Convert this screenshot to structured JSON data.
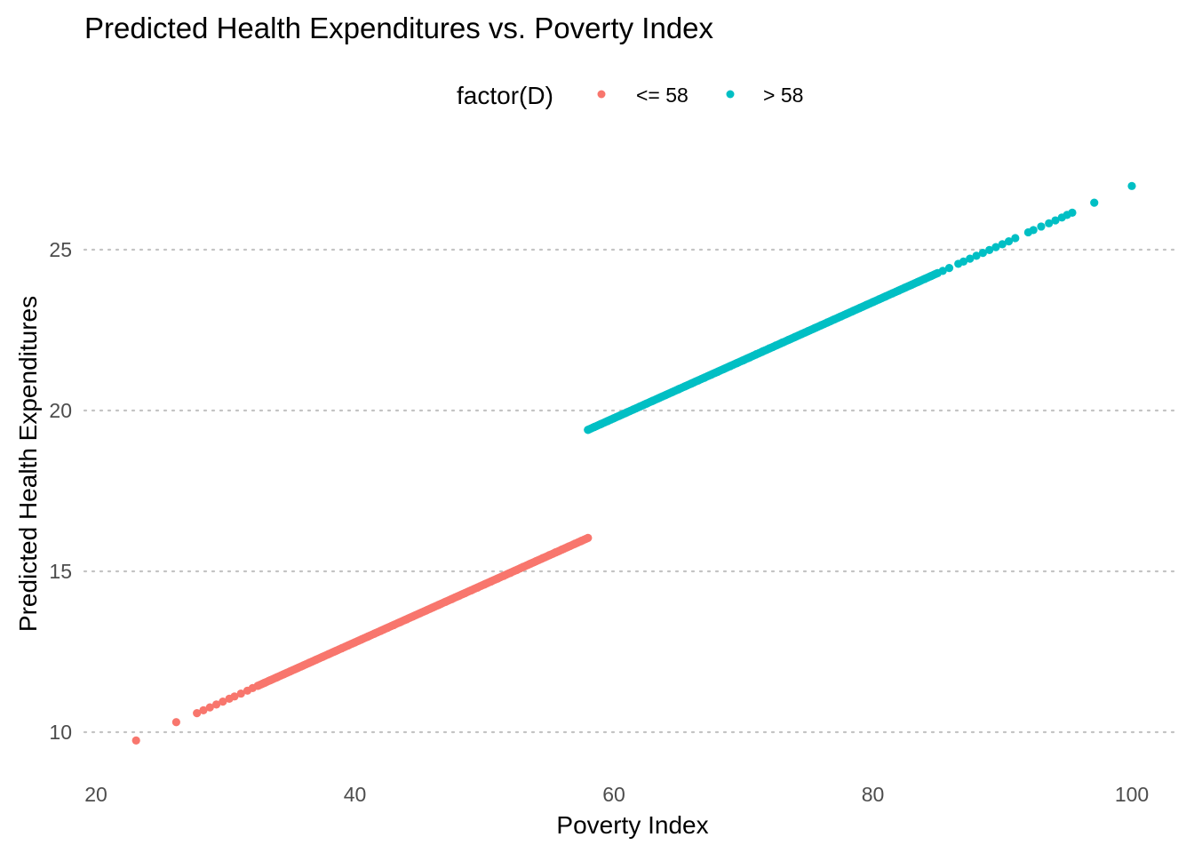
{
  "chart_data": {
    "type": "scatter",
    "title": "Predicted Health Expenditures vs. Poverty Index",
    "xlabel": "Poverty Index",
    "ylabel": "Predicted Health Expenditures",
    "xlim": [
      20,
      100
    ],
    "ylim": [
      9.5,
      27.2
    ],
    "xticks": [
      20,
      40,
      60,
      80,
      100
    ],
    "yticks": [
      10,
      15,
      20,
      25
    ],
    "grid": "horizontal-major-dotted",
    "legend": {
      "title": "factor(D)",
      "position": "top",
      "entries": [
        {
          "label": "<= 58",
          "color": "#F8766D"
        },
        {
          "label": "> 58",
          "color": "#00BFC4"
        }
      ]
    },
    "series": [
      {
        "name": "<= 58",
        "color": "#F8766D",
        "fit": {
          "slope": 0.1803,
          "intercept": 5.58,
          "x_range": [
            23.1,
            58.0
          ]
        },
        "x": [
          23.1,
          26.2,
          27.8,
          28.3,
          28.8,
          29.3,
          29.8,
          30.3,
          30.7,
          31.2,
          31.7,
          32.1,
          32.5,
          33.0,
          33.5,
          34.0,
          34.5,
          35.0,
          35.5,
          36.0,
          36.5,
          37.0,
          37.5,
          38.0,
          38.5,
          39.0,
          39.5,
          40.0,
          40.5,
          41.0,
          41.5,
          42.0,
          42.5,
          43.0,
          43.5,
          44.0,
          44.5,
          45.0,
          45.5,
          46.0,
          46.5,
          47.0,
          47.5,
          48.0,
          48.5,
          49.0,
          49.5,
          50.0,
          50.5,
          51.0,
          51.5,
          52.0,
          52.5,
          53.0,
          53.5,
          54.0,
          54.5,
          55.0,
          55.5,
          56.0,
          56.5,
          57.0,
          57.5,
          58.0
        ],
        "y": [
          9.74,
          10.31,
          10.59,
          10.68,
          10.77,
          10.86,
          10.95,
          11.04,
          11.11,
          11.2,
          11.29,
          11.37,
          11.44,
          11.53,
          11.62,
          11.71,
          11.8,
          11.89,
          11.98,
          12.07,
          12.16,
          12.25,
          12.34,
          12.43,
          12.52,
          12.61,
          12.7,
          12.79,
          12.88,
          12.97,
          13.06,
          13.15,
          13.24,
          13.33,
          13.42,
          13.51,
          13.6,
          13.69,
          13.78,
          13.87,
          13.96,
          14.05,
          14.14,
          14.23,
          14.32,
          14.41,
          14.5,
          14.59,
          14.68,
          14.77,
          14.86,
          14.95,
          15.04,
          15.14,
          15.23,
          15.32,
          15.41,
          15.5,
          15.59,
          15.68,
          15.77,
          15.86,
          15.95,
          16.04
        ]
      },
      {
        "name": "> 58",
        "color": "#00BFC4",
        "fit": {
          "slope": 0.1805,
          "intercept": 8.93,
          "x_range": [
            58.0,
            100.0
          ]
        },
        "x": [
          58.0,
          58.5,
          59.0,
          59.5,
          60.0,
          60.5,
          61.0,
          61.5,
          62.0,
          62.5,
          63.0,
          63.5,
          64.0,
          64.5,
          65.0,
          65.5,
          66.0,
          66.5,
          67.0,
          67.5,
          68.0,
          68.5,
          69.0,
          69.5,
          70.0,
          70.5,
          71.0,
          71.5,
          72.0,
          72.5,
          73.0,
          73.5,
          74.0,
          74.5,
          75.0,
          75.5,
          76.0,
          76.5,
          77.0,
          77.5,
          78.0,
          78.5,
          79.0,
          79.5,
          80.0,
          80.5,
          81.0,
          81.5,
          82.0,
          82.5,
          83.0,
          83.5,
          84.0,
          84.5,
          85.0,
          85.4,
          85.9,
          86.6,
          87.0,
          87.5,
          88.0,
          88.5,
          89.0,
          89.5,
          90.0,
          90.5,
          91.0,
          92.0,
          92.4,
          93.0,
          93.6,
          94.1,
          94.6,
          95.0,
          95.4,
          97.1,
          100.0
        ],
        "y": [
          19.4,
          19.49,
          19.58,
          19.67,
          19.76,
          19.85,
          19.94,
          20.03,
          20.12,
          20.21,
          20.3,
          20.39,
          20.48,
          20.57,
          20.66,
          20.75,
          20.84,
          20.93,
          21.02,
          21.11,
          21.2,
          21.29,
          21.38,
          21.47,
          21.56,
          21.65,
          21.75,
          21.84,
          21.93,
          22.02,
          22.11,
          22.2,
          22.29,
          22.38,
          22.47,
          22.56,
          22.65,
          22.74,
          22.83,
          22.92,
          23.01,
          23.1,
          23.19,
          23.28,
          23.37,
          23.46,
          23.55,
          23.64,
          23.73,
          23.82,
          23.91,
          24.0,
          24.09,
          24.18,
          24.27,
          24.34,
          24.43,
          24.56,
          24.63,
          24.72,
          24.81,
          24.9,
          24.99,
          25.08,
          25.17,
          25.26,
          25.36,
          25.54,
          25.61,
          25.72,
          25.82,
          25.91,
          26.0,
          26.08,
          26.15,
          26.46,
          26.98
        ]
      }
    ]
  }
}
